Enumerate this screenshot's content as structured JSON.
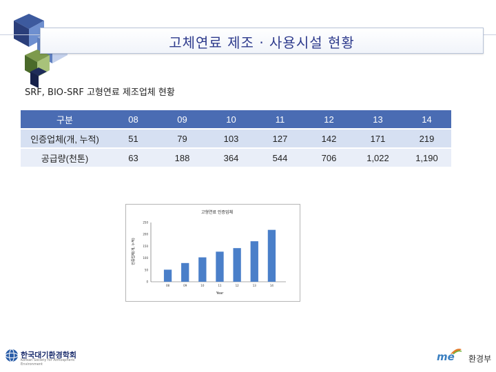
{
  "slide": {
    "title": "고체연료 제조 · 사용시설 현황",
    "subtitle": "SRF, BIO-SRF 고형연료 제조업체 현황"
  },
  "table": {
    "headers": [
      "구분",
      "08",
      "09",
      "10",
      "11",
      "12",
      "13",
      "14"
    ],
    "rows": [
      [
        "인증업체(개, 누적)",
        "51",
        "79",
        "103",
        "127",
        "142",
        "171",
        "219"
      ],
      [
        "공급량(천톤)",
        "63",
        "188",
        "364",
        "544",
        "706",
        "1,022",
        "1,190"
      ]
    ]
  },
  "chart_data": {
    "type": "bar",
    "title": "고형연료 인증업체",
    "xlabel": "Year",
    "ylabel": "인증업체(개, 누적)",
    "categories": [
      "08",
      "09",
      "10",
      "11",
      "12",
      "13",
      "14"
    ],
    "values": [
      51,
      79,
      103,
      127,
      142,
      171,
      219
    ],
    "ylim": [
      0,
      250
    ],
    "yticks": [
      "0",
      "50",
      "100",
      "150",
      "200",
      "250"
    ],
    "bar_color": "#4a7fc9",
    "grid": false,
    "legend": "none"
  },
  "footer": {
    "left_org": "한국대기환경학회",
    "left_sub": "Korean Society for Atmospheric Environment",
    "right_logo": "me",
    "right_org": "환경부"
  },
  "colors": {
    "header_bg": "#4a6cb3",
    "row1_bg": "#d6e0f2",
    "row2_bg": "#e9eef8",
    "title_text": "#2d3a8c"
  }
}
